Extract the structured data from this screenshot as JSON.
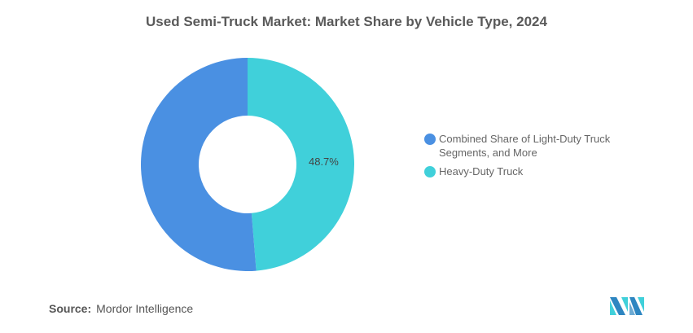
{
  "chart_data": {
    "type": "pie",
    "subtype": "donut",
    "title": "Used Semi-Truck Market: Market Share by Vehicle Type, 2024",
    "slices": [
      {
        "label": "Heavy-Duty Truck",
        "value": 48.7,
        "data_label": "48.7%",
        "color": "#40D0DA"
      },
      {
        "label": "Combined Share of Light-Duty Truck Segments, and More",
        "value": 51.3,
        "data_label": null,
        "color": "#4A90E2"
      }
    ],
    "legend": {
      "placement": "right",
      "entries": [
        "Combined Share of Light-Duty Truck Segments, and More",
        "Heavy-Duty Truck"
      ]
    }
  },
  "legend_colors": [
    "#4A90E2",
    "#40D0DA"
  ],
  "source": {
    "label": "Source:",
    "value": "Mordor Intelligence"
  },
  "logo_text": "Mordor Intelligence"
}
